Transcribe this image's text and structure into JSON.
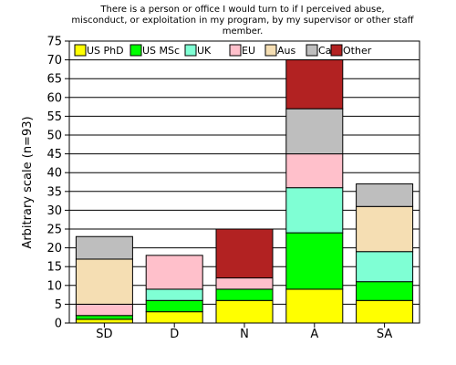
{
  "chart_data": {
    "type": "bar",
    "stacked": true,
    "title_lines": [
      "There is a person or office I would turn to if I perceived abuse,",
      "misconduct, or exploitation in my program, by my supervisor or other staff",
      "member."
    ],
    "xlabel": "",
    "ylabel": "Arbitrary scale (n=93)",
    "ylim": [
      0,
      75
    ],
    "yticks": [
      0,
      5,
      10,
      15,
      20,
      25,
      30,
      35,
      40,
      45,
      50,
      55,
      60,
      65,
      70,
      75
    ],
    "grid": true,
    "legend_position": "top",
    "categories": [
      "SD",
      "D",
      "N",
      "A",
      "SA"
    ],
    "series": [
      {
        "name": "US PhD",
        "color": "#ffff00",
        "values": [
          1,
          3,
          6,
          9,
          6
        ]
      },
      {
        "name": "US MSc",
        "color": "#00ff00",
        "values": [
          1,
          3,
          3,
          15,
          5
        ]
      },
      {
        "name": "UK",
        "color": "#7fffd4",
        "values": [
          0,
          3,
          0,
          12,
          8
        ]
      },
      {
        "name": "EU",
        "color": "#ffc0cb",
        "values": [
          3,
          9,
          3,
          9,
          0
        ]
      },
      {
        "name": "Aus",
        "color": "#f5deb3",
        "values": [
          12,
          0,
          0,
          0,
          12
        ]
      },
      {
        "name": "Ca",
        "color": "#bebebe",
        "values": [
          6,
          0,
          0,
          12,
          6
        ]
      },
      {
        "name": "Other",
        "color": "#b22222",
        "values": [
          0,
          0,
          13,
          13,
          0
        ]
      }
    ]
  }
}
